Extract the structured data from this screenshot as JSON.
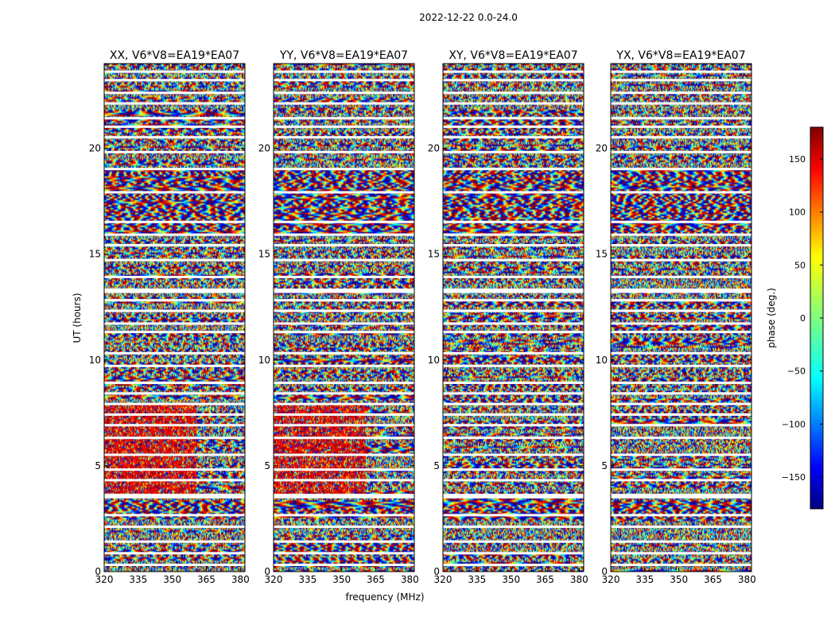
{
  "chart_data": {
    "type": "heatmap",
    "title": "2022-12-22 0.0-24.0",
    "xlabel": "frequency (MHz)",
    "ylabel": "UT (hours)",
    "xlim": [
      320,
      382
    ],
    "ylim": [
      0,
      24
    ],
    "x_ticks": [
      "320",
      "335",
      "350",
      "365",
      "380"
    ],
    "y_ticks": [
      "0",
      "5",
      "10",
      "15",
      "20"
    ],
    "panels": [
      {
        "title": "XX, V6*V8=EA19*EA07",
        "polarization": "XX"
      },
      {
        "title": "YY, V6*V8=EA19*EA07",
        "polarization": "YY"
      },
      {
        "title": "XY, V6*V8=EA19*EA07",
        "polarization": "XY"
      },
      {
        "title": "YX, V6*V8=EA19*EA07",
        "polarization": "YX"
      }
    ],
    "colorbar": {
      "label": "phase (deg.)",
      "range": [
        -180,
        180
      ],
      "ticks": [
        "150",
        "100",
        "50",
        "0",
        "−50",
        "−100",
        "−150"
      ],
      "tick_values": [
        150,
        100,
        50,
        0,
        -50,
        -100,
        -150
      ],
      "colormap": "jet"
    },
    "flagged_gaps_hours": [
      0.3,
      0.85,
      1.4,
      2.1,
      2.65,
      3.5,
      3.6,
      4.3,
      4.8,
      5.5,
      6.3,
      6.9,
      7.4,
      7.9,
      8.4,
      8.9,
      9.7,
      10.3,
      11.3,
      11.7,
      12.3,
      12.8,
      13.2,
      13.3,
      13.9,
      14.7,
      15.4,
      15.9,
      16.5,
      17.9,
      19.0,
      19.8,
      20.5,
      21.0,
      21.4,
      22.1,
      22.6,
      23.2,
      23.6
    ]
  }
}
